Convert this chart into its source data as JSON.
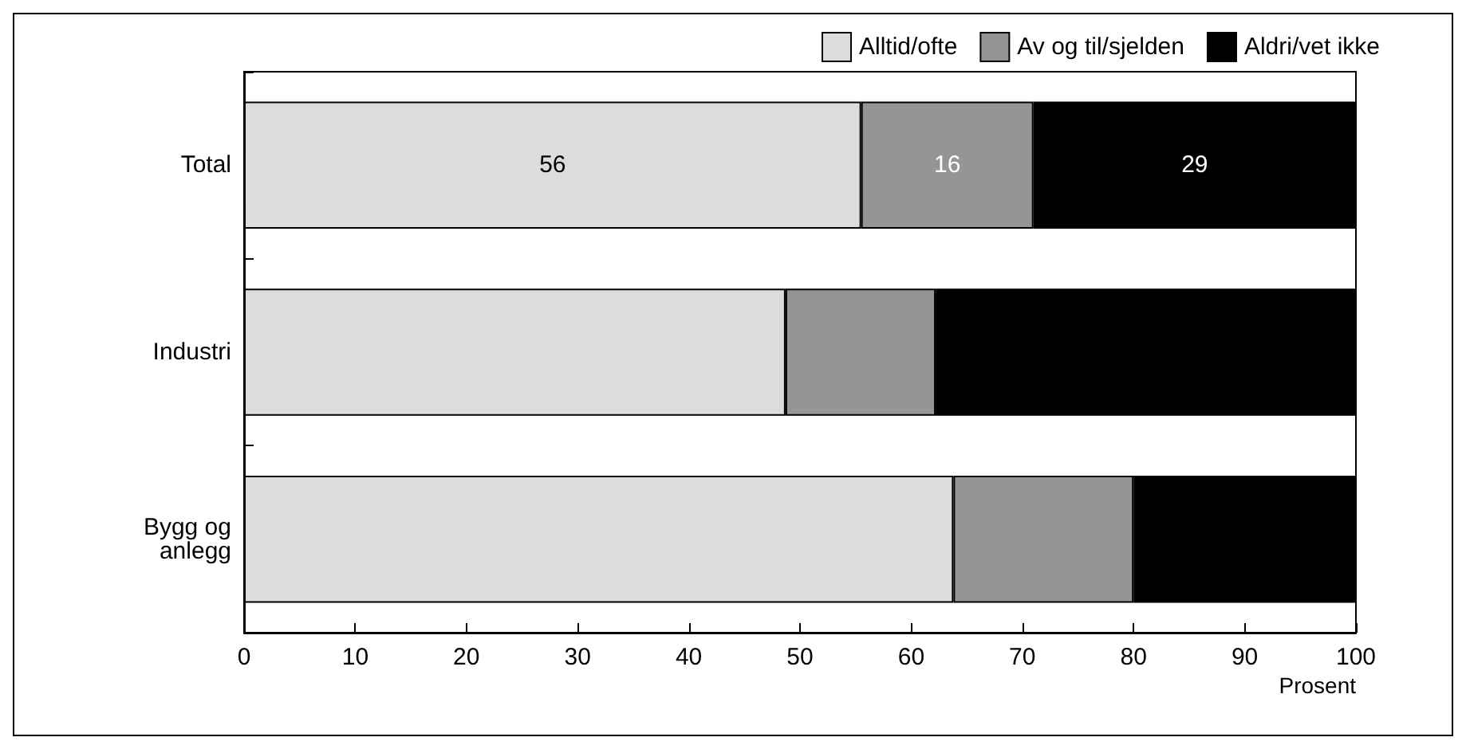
{
  "chart_data": {
    "type": "bar",
    "orientation": "horizontal",
    "stacked": true,
    "xlabel": "Prosent",
    "categories": [
      "Total",
      "Industri",
      "Bygg og\nanlegg"
    ],
    "series": [
      {
        "name": "Alltid/ofte",
        "color": "#dcdcdd",
        "values": [
          55.5,
          48.7,
          63.8
        ],
        "value_labels": [
          "56",
          null,
          null
        ]
      },
      {
        "name": "Av og til/sjelden",
        "color": "#959597",
        "values": [
          15.5,
          13.5,
          16.2
        ],
        "value_labels": [
          "16",
          null,
          null
        ]
      },
      {
        "name": "Aldri/vet ikke",
        "color": "#000000",
        "values": [
          29,
          37.8,
          20
        ],
        "value_labels": [
          "29",
          null,
          null
        ]
      }
    ],
    "xlim": [
      0,
      100
    ],
    "xticks": [
      0,
      10,
      20,
      30,
      40,
      50,
      60,
      70,
      80,
      90,
      100
    ],
    "grid": false,
    "legend": "top right"
  }
}
